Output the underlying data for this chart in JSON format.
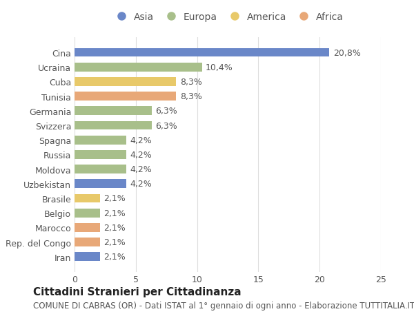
{
  "categories": [
    "Cina",
    "Ucraina",
    "Cuba",
    "Tunisia",
    "Germania",
    "Svizzera",
    "Spagna",
    "Russia",
    "Moldova",
    "Uzbekistan",
    "Brasile",
    "Belgio",
    "Marocco",
    "Rep. del Congo",
    "Iran"
  ],
  "values": [
    20.8,
    10.4,
    8.3,
    8.3,
    6.3,
    6.3,
    4.2,
    4.2,
    4.2,
    4.2,
    2.1,
    2.1,
    2.1,
    2.1,
    2.1
  ],
  "labels": [
    "20,8%",
    "10,4%",
    "8,3%",
    "8,3%",
    "6,3%",
    "6,3%",
    "4,2%",
    "4,2%",
    "4,2%",
    "4,2%",
    "2,1%",
    "2,1%",
    "2,1%",
    "2,1%",
    "2,1%"
  ],
  "continents": [
    "Asia",
    "Europa",
    "America",
    "Africa",
    "Europa",
    "Europa",
    "Europa",
    "Europa",
    "Europa",
    "Asia",
    "America",
    "Europa",
    "Africa",
    "Africa",
    "Asia"
  ],
  "continent_colors": {
    "Asia": "#6a87c8",
    "Europa": "#a8bf8a",
    "America": "#e8c96a",
    "Africa": "#e8a878"
  },
  "legend_order": [
    "Asia",
    "Europa",
    "America",
    "Africa"
  ],
  "xlim": [
    0,
    25
  ],
  "xticks": [
    0,
    5,
    10,
    15,
    20,
    25
  ],
  "title": "Cittadini Stranieri per Cittadinanza",
  "subtitle": "COMUNE DI CABRAS (OR) - Dati ISTAT al 1° gennaio di ogni anno - Elaborazione TUTTITALIA.IT",
  "background_color": "#ffffff",
  "bar_height": 0.6,
  "label_fontsize": 9,
  "title_fontsize": 11,
  "subtitle_fontsize": 8.5,
  "tick_fontsize": 9,
  "legend_fontsize": 10
}
